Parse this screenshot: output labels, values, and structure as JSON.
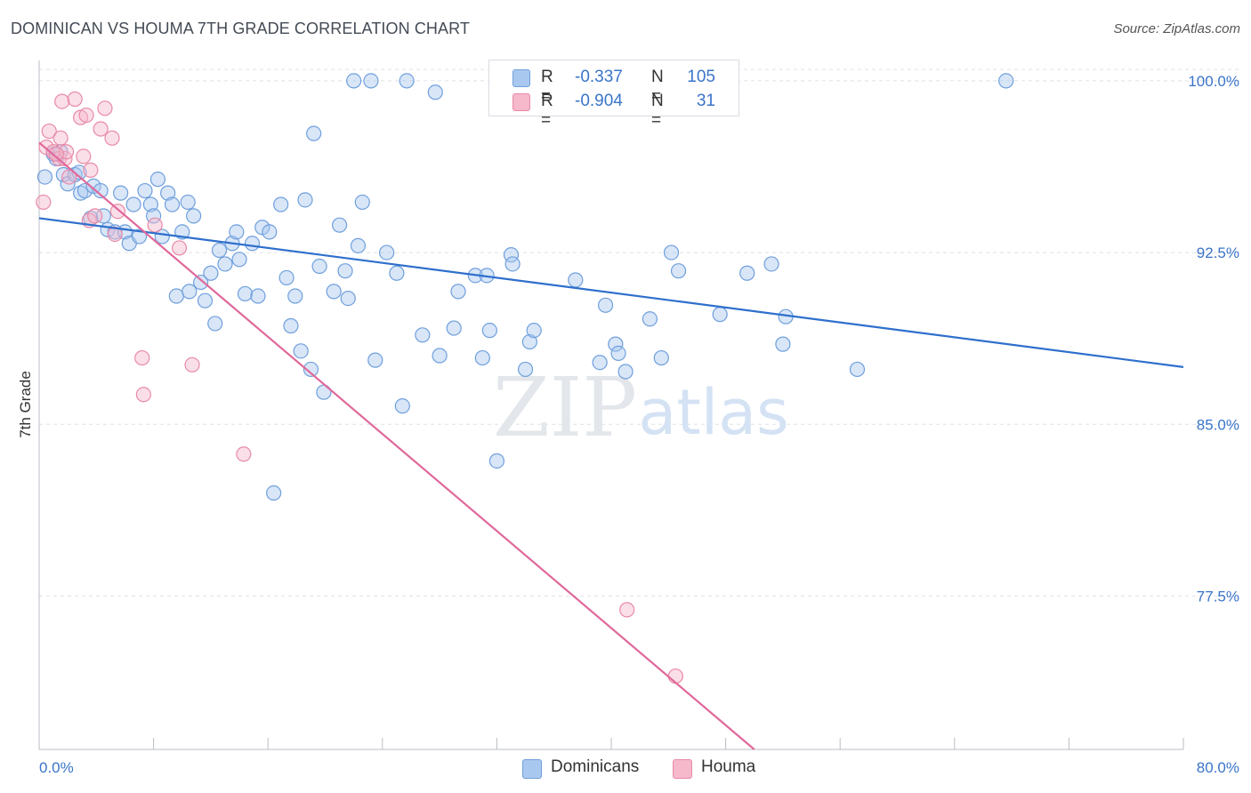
{
  "header": {
    "title": "DOMINICAN VS HOUMA 7TH GRADE CORRELATION CHART",
    "source": "Source: ZipAtlas.com"
  },
  "watermark": {
    "zip": "ZIP",
    "atlas": "atlas"
  },
  "legend": {
    "rows": [
      {
        "r_label": "R =",
        "r_value": "-0.337",
        "n_label": "N =",
        "n_value": "105",
        "color": "#a9c8f0"
      },
      {
        "r_label": "R =",
        "r_value": "-0.904",
        "n_label": "N =",
        "n_value": "31",
        "color": "#f6b8cb"
      }
    ]
  },
  "bottom_legend": {
    "items": [
      {
        "label": "Dominicans",
        "color": "#a9c8f0"
      },
      {
        "label": "Houma",
        "color": "#f6b8cb"
      }
    ]
  },
  "colors": {
    "blue_fill": "#a9c8f0",
    "blue_stroke": "#6f9fdc",
    "blue_line": "#2e6fcc",
    "pink_fill": "#f6b8cb",
    "pink_stroke": "#e88aa8",
    "pink_line": "#e0689a",
    "grid": "#dde1e6",
    "tick_text": "#3a74c9"
  },
  "chart_data": {
    "type": "scatter",
    "title": "DOMINICAN VS HOUMA 7TH GRADE CORRELATION CHART",
    "xlabel": "",
    "ylabel": "7th Grade",
    "xlim": [
      0,
      80
    ],
    "ylim": [
      70.8,
      101.2
    ],
    "x_tick_labels": [
      {
        "value": 0,
        "label": "0.0%"
      },
      {
        "value": 80,
        "label": "80.0%"
      }
    ],
    "y_tick_labels": [
      {
        "value": 100,
        "label": "100.0%"
      },
      {
        "value": 92.5,
        "label": "92.5%"
      },
      {
        "value": 85,
        "label": "85.0%"
      },
      {
        "value": 77.5,
        "label": "77.5%"
      }
    ],
    "x_minor_ticks": [
      8,
      16,
      24,
      32,
      40,
      48,
      56,
      64,
      72,
      80
    ],
    "grid": true,
    "series": [
      {
        "name": "Dominicans",
        "color": "#a9c8f0",
        "trend": {
          "x": [
            0,
            80
          ],
          "y": [
            94.0,
            87.5
          ]
        },
        "points": [
          [
            0.4,
            95.8
          ],
          [
            1.0,
            96.8
          ],
          [
            1.2,
            96.6
          ],
          [
            1.5,
            96.9
          ],
          [
            1.7,
            95.9
          ],
          [
            2.0,
            95.5
          ],
          [
            2.5,
            95.9
          ],
          [
            2.8,
            96.0
          ],
          [
            2.9,
            95.1
          ],
          [
            3.2,
            95.2
          ],
          [
            3.6,
            94.0
          ],
          [
            3.8,
            95.4
          ],
          [
            4.3,
            95.2
          ],
          [
            4.5,
            94.1
          ],
          [
            4.8,
            93.5
          ],
          [
            5.3,
            93.4
          ],
          [
            5.7,
            95.1
          ],
          [
            6.0,
            93.4
          ],
          [
            6.3,
            92.9
          ],
          [
            6.6,
            94.6
          ],
          [
            7.0,
            93.2
          ],
          [
            7.4,
            95.2
          ],
          [
            7.8,
            94.6
          ],
          [
            8.0,
            94.1
          ],
          [
            8.3,
            95.7
          ],
          [
            8.6,
            93.2
          ],
          [
            9.0,
            95.1
          ],
          [
            9.3,
            94.6
          ],
          [
            9.6,
            90.6
          ],
          [
            10.0,
            93.4
          ],
          [
            10.4,
            94.7
          ],
          [
            10.5,
            90.8
          ],
          [
            10.8,
            94.1
          ],
          [
            11.3,
            91.2
          ],
          [
            11.6,
            90.4
          ],
          [
            12.0,
            91.6
          ],
          [
            12.3,
            89.4
          ],
          [
            12.6,
            92.6
          ],
          [
            13.0,
            92.0
          ],
          [
            13.5,
            92.9
          ],
          [
            13.8,
            93.4
          ],
          [
            14.0,
            92.2
          ],
          [
            14.4,
            90.7
          ],
          [
            14.9,
            92.9
          ],
          [
            15.3,
            90.6
          ],
          [
            15.6,
            93.6
          ],
          [
            16.1,
            93.4
          ],
          [
            16.4,
            82.0
          ],
          [
            16.9,
            94.6
          ],
          [
            17.3,
            91.4
          ],
          [
            17.6,
            89.3
          ],
          [
            17.9,
            90.6
          ],
          [
            18.3,
            88.2
          ],
          [
            18.6,
            94.8
          ],
          [
            19.0,
            87.4
          ],
          [
            19.2,
            97.7
          ],
          [
            19.6,
            91.9
          ],
          [
            19.9,
            86.4
          ],
          [
            20.6,
            90.8
          ],
          [
            21.0,
            93.7
          ],
          [
            21.4,
            91.7
          ],
          [
            21.6,
            90.5
          ],
          [
            22.0,
            100.0
          ],
          [
            22.3,
            92.8
          ],
          [
            22.6,
            94.7
          ],
          [
            23.2,
            100.0
          ],
          [
            23.5,
            87.8
          ],
          [
            24.3,
            92.5
          ],
          [
            25.0,
            91.6
          ],
          [
            25.4,
            85.8
          ],
          [
            25.7,
            100.0
          ],
          [
            26.8,
            88.9
          ],
          [
            27.7,
            99.5
          ],
          [
            28.0,
            88.0
          ],
          [
            29.0,
            89.2
          ],
          [
            29.3,
            90.8
          ],
          [
            30.5,
            91.5
          ],
          [
            31.0,
            87.9
          ],
          [
            31.3,
            91.5
          ],
          [
            31.5,
            89.1
          ],
          [
            32.0,
            83.4
          ],
          [
            32.4,
            100.0
          ],
          [
            33.0,
            92.4
          ],
          [
            33.1,
            92.0
          ],
          [
            34.0,
            87.4
          ],
          [
            34.3,
            88.6
          ],
          [
            34.6,
            89.1
          ],
          [
            37.5,
            91.3
          ],
          [
            39.2,
            87.7
          ],
          [
            39.6,
            90.2
          ],
          [
            40.3,
            88.5
          ],
          [
            40.5,
            88.1
          ],
          [
            41.0,
            87.3
          ],
          [
            42.7,
            89.6
          ],
          [
            43.5,
            87.9
          ],
          [
            44.2,
            92.5
          ],
          [
            44.7,
            91.7
          ],
          [
            47.6,
            89.8
          ],
          [
            49.5,
            91.6
          ],
          [
            51.2,
            92.0
          ],
          [
            52.0,
            88.5
          ],
          [
            52.2,
            89.7
          ],
          [
            57.2,
            87.4
          ],
          [
            67.6,
            100.0
          ]
        ]
      },
      {
        "name": "Houma",
        "color": "#f6b8cb",
        "trend": {
          "x": [
            0,
            50
          ],
          "y": [
            97.3,
            70.8
          ]
        },
        "points": [
          [
            0.3,
            94.7
          ],
          [
            0.5,
            97.1
          ],
          [
            0.7,
            97.8
          ],
          [
            1.0,
            96.9
          ],
          [
            1.4,
            96.6
          ],
          [
            1.5,
            97.5
          ],
          [
            1.6,
            99.1
          ],
          [
            1.8,
            96.6
          ],
          [
            1.9,
            96.9
          ],
          [
            2.1,
            95.8
          ],
          [
            2.5,
            99.2
          ],
          [
            2.9,
            98.4
          ],
          [
            3.1,
            96.7
          ],
          [
            3.3,
            98.5
          ],
          [
            3.5,
            93.9
          ],
          [
            3.6,
            96.1
          ],
          [
            3.9,
            94.1
          ],
          [
            4.3,
            97.9
          ],
          [
            4.6,
            98.8
          ],
          [
            5.1,
            97.5
          ],
          [
            5.3,
            93.3
          ],
          [
            5.5,
            94.3
          ],
          [
            7.2,
            87.9
          ],
          [
            7.3,
            86.3
          ],
          [
            8.1,
            93.7
          ],
          [
            9.8,
            92.7
          ],
          [
            10.7,
            87.6
          ],
          [
            14.3,
            83.7
          ],
          [
            41.1,
            76.9
          ],
          [
            44.5,
            74.0
          ],
          [
            1.2,
            96.8
          ]
        ]
      }
    ]
  }
}
